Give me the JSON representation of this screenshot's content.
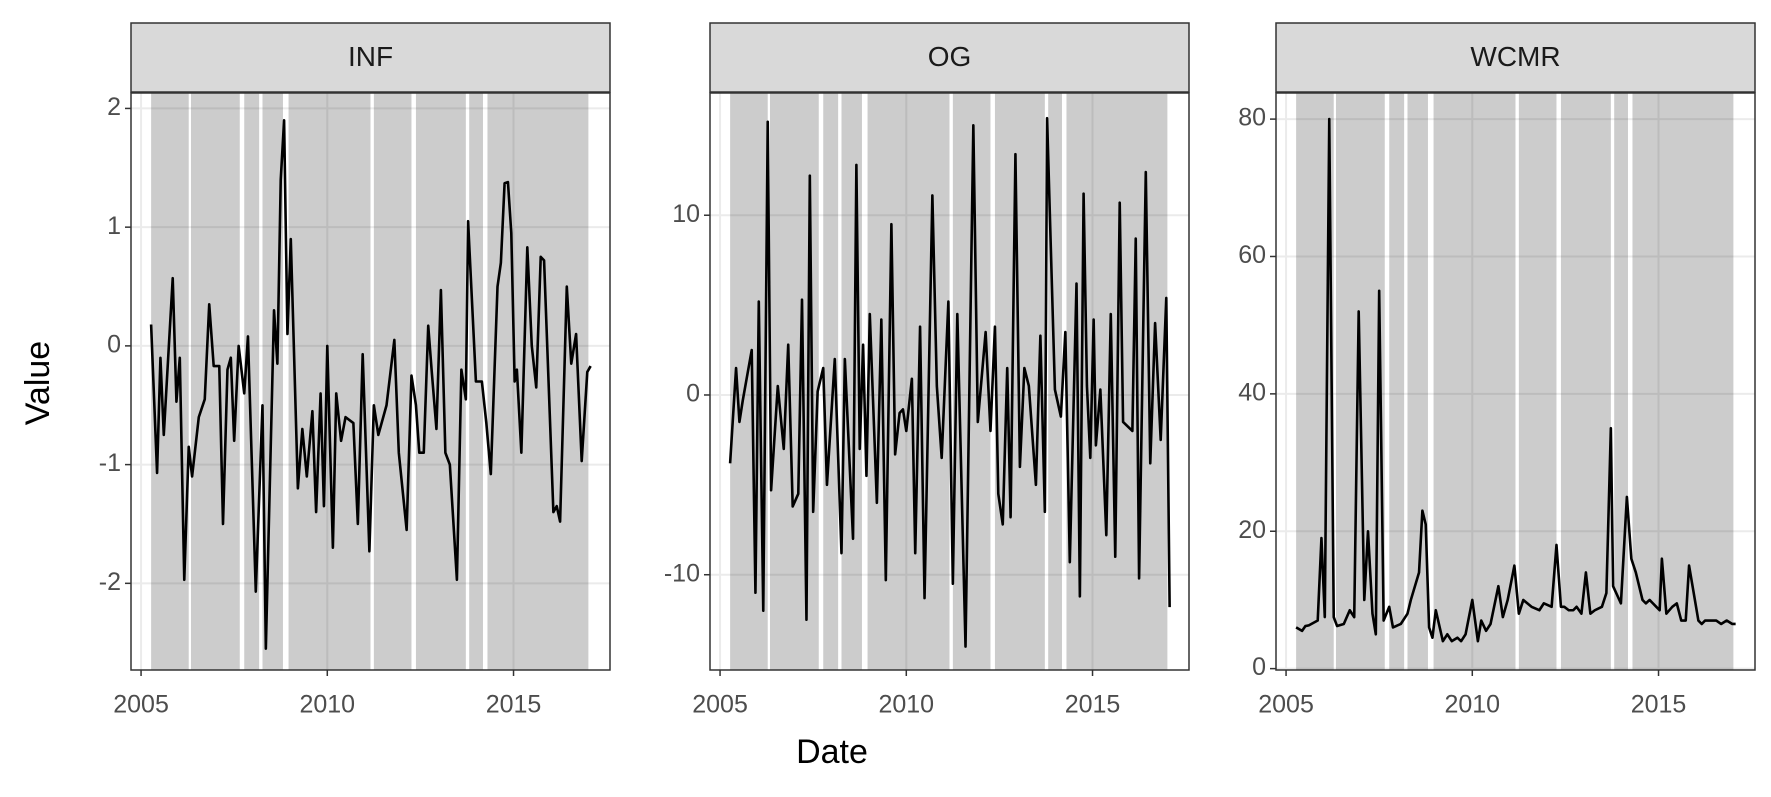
{
  "x_label": "Date",
  "y_label": "Value",
  "chart_data": [
    {
      "type": "line",
      "title": "INF",
      "color": "#000000",
      "grid": true,
      "xlim": [
        2004.73,
        2017.59
      ],
      "xticks": [
        2005,
        2010,
        2015
      ],
      "ylim": [
        -2.73,
        2.13
      ],
      "yticks": [
        -2,
        -1,
        0,
        1,
        2
      ],
      "shaded": [
        [
          2005.27,
          2006.28
        ],
        [
          2006.34,
          2007.65
        ],
        [
          2007.77,
          2008.17
        ],
        [
          2008.26,
          2008.81
        ],
        [
          2008.96,
          2011.16
        ],
        [
          2011.25,
          2012.26
        ],
        [
          2012.38,
          2013.72
        ],
        [
          2013.81,
          2014.18
        ],
        [
          2014.3,
          2017.01
        ]
      ],
      "x": [
        2005.27,
        2005.43,
        2005.52,
        2005.61,
        2005.85,
        2005.95,
        2006.04,
        2006.16,
        2006.28,
        2006.37,
        2006.55,
        2006.71,
        2006.83,
        2006.95,
        2007.1,
        2007.2,
        2007.32,
        2007.41,
        2007.5,
        2007.62,
        2007.77,
        2007.87,
        2008.08,
        2008.26,
        2008.35,
        2008.57,
        2008.66,
        2008.75,
        2008.84,
        2008.93,
        2009.02,
        2009.21,
        2009.33,
        2009.45,
        2009.6,
        2009.7,
        2009.82,
        2009.91,
        2010.0,
        2010.15,
        2010.24,
        2010.37,
        2010.49,
        2010.7,
        2010.82,
        2010.95,
        2011.13,
        2011.25,
        2011.37,
        2011.59,
        2011.8,
        2011.92,
        2012.13,
        2012.26,
        2012.38,
        2012.47,
        2012.59,
        2012.71,
        2012.8,
        2012.93,
        2013.05,
        2013.17,
        2013.29,
        2013.48,
        2013.6,
        2013.72,
        2013.78,
        2013.99,
        2014.15,
        2014.27,
        2014.39,
        2014.57,
        2014.66,
        2014.76,
        2014.85,
        2014.94,
        2015.03,
        2015.09,
        2015.21,
        2015.37,
        2015.49,
        2015.61,
        2015.73,
        2015.82,
        2016.07,
        2016.16,
        2016.25,
        2016.43,
        2016.55,
        2016.68,
        2016.83,
        2016.98,
        2017.07
      ],
      "values": [
        0.18,
        -1.07,
        -0.1,
        -0.75,
        0.57,
        -0.47,
        -0.1,
        -1.97,
        -0.85,
        -1.1,
        -0.6,
        -0.45,
        0.35,
        -0.17,
        -0.17,
        -1.5,
        -0.2,
        -0.1,
        -0.8,
        0.0,
        -0.4,
        0.08,
        -2.07,
        -0.5,
        -2.55,
        0.3,
        -0.15,
        1.4,
        1.9,
        0.1,
        0.9,
        -1.2,
        -0.7,
        -1.1,
        -0.55,
        -1.4,
        -0.4,
        -1.35,
        0.0,
        -1.7,
        -0.4,
        -0.8,
        -0.6,
        -0.65,
        -1.5,
        -0.07,
        -1.73,
        -0.5,
        -0.75,
        -0.5,
        0.05,
        -0.9,
        -1.55,
        -0.25,
        -0.5,
        -0.9,
        -0.9,
        0.17,
        -0.2,
        -0.7,
        0.47,
        -0.9,
        -1.0,
        -1.97,
        -0.2,
        -0.45,
        1.05,
        -0.3,
        -0.3,
        -0.65,
        -1.08,
        0.5,
        0.7,
        1.37,
        1.38,
        0.95,
        -0.3,
        -0.2,
        -0.9,
        0.83,
        0.0,
        -0.35,
        0.75,
        0.72,
        -1.4,
        -1.35,
        -1.48,
        0.5,
        -0.15,
        0.1,
        -0.97,
        -0.22,
        -0.17
      ]
    },
    {
      "type": "line",
      "title": "OG",
      "color": "#000000",
      "grid": true,
      "xlim": [
        2004.73,
        2017.59
      ],
      "xticks": [
        2005,
        2010,
        2015
      ],
      "ylim": [
        -15.3,
        16.8
      ],
      "yticks": [
        -10,
        0,
        10
      ],
      "shaded": [
        [
          2005.27,
          2006.28
        ],
        [
          2006.34,
          2007.65
        ],
        [
          2007.77,
          2008.17
        ],
        [
          2008.26,
          2008.81
        ],
        [
          2008.96,
          2011.16
        ],
        [
          2011.25,
          2012.26
        ],
        [
          2012.38,
          2013.72
        ],
        [
          2013.81,
          2014.18
        ],
        [
          2014.3,
          2017.01
        ]
      ],
      "x": [
        2005.27,
        2005.43,
        2005.52,
        2005.61,
        2005.85,
        2005.95,
        2006.04,
        2006.16,
        2006.28,
        2006.37,
        2006.55,
        2006.71,
        2006.83,
        2006.95,
        2007.1,
        2007.2,
        2007.32,
        2007.41,
        2007.5,
        2007.62,
        2007.77,
        2007.87,
        2008.08,
        2008.26,
        2008.35,
        2008.57,
        2008.66,
        2008.75,
        2008.84,
        2008.93,
        2009.02,
        2009.21,
        2009.33,
        2009.45,
        2009.6,
        2009.7,
        2009.82,
        2009.91,
        2010.0,
        2010.15,
        2010.24,
        2010.37,
        2010.49,
        2010.7,
        2010.82,
        2010.95,
        2011.13,
        2011.25,
        2011.37,
        2011.59,
        2011.8,
        2011.92,
        2012.13,
        2012.26,
        2012.38,
        2012.47,
        2012.59,
        2012.71,
        2012.8,
        2012.93,
        2013.05,
        2013.17,
        2013.29,
        2013.48,
        2013.6,
        2013.72,
        2013.78,
        2013.99,
        2014.15,
        2014.27,
        2014.39,
        2014.57,
        2014.66,
        2014.76,
        2014.85,
        2014.94,
        2015.03,
        2015.09,
        2015.21,
        2015.37,
        2015.49,
        2015.61,
        2015.73,
        2015.82,
        2016.07,
        2016.16,
        2016.25,
        2016.43,
        2016.55,
        2016.68,
        2016.83,
        2016.98,
        2017.07
      ],
      "values": [
        -3.8,
        1.5,
        -1.5,
        -0.3,
        2.5,
        -11,
        5.2,
        -12,
        15.2,
        -5.3,
        0.5,
        -3,
        2.8,
        -6.2,
        -5.5,
        5.3,
        -12.5,
        12.2,
        -6.5,
        0.2,
        1.5,
        -5,
        2,
        -8.8,
        2,
        -8,
        12.8,
        -3,
        2.8,
        -4.5,
        4.5,
        -6,
        4.2,
        -10.3,
        9.5,
        -3.3,
        -1,
        -0.8,
        -2,
        0.9,
        -8.8,
        3.8,
        -11.3,
        11.1,
        0.5,
        -3.5,
        5.2,
        -10.5,
        4.5,
        -14,
        15,
        -1.5,
        3.5,
        -2,
        3.8,
        -5.5,
        -7.2,
        1.5,
        -6.8,
        13.4,
        -4,
        1.5,
        0.5,
        -5,
        3.3,
        -6.5,
        15.4,
        0.3,
        -1.2,
        3.5,
        -9.3,
        6.2,
        -11.2,
        11.2,
        0.5,
        -3.5,
        4.2,
        -2.8,
        0.3,
        -7.8,
        4.5,
        -9,
        10.7,
        -1.5,
        -2,
        8.7,
        -10.2,
        12.4,
        -3.8,
        4,
        -2.5,
        5.4,
        -11.8
      ]
    },
    {
      "type": "line",
      "title": "WCMR",
      "color": "#000000",
      "grid": true,
      "xlim": [
        2004.73,
        2017.59
      ],
      "xticks": [
        2005,
        2010,
        2015
      ],
      "ylim": [
        -0.2,
        83.8
      ],
      "yticks": [
        0,
        20,
        40,
        60,
        80
      ],
      "shaded": [
        [
          2005.27,
          2006.28
        ],
        [
          2006.34,
          2007.65
        ],
        [
          2007.77,
          2008.17
        ],
        [
          2008.26,
          2008.81
        ],
        [
          2008.96,
          2011.16
        ],
        [
          2011.25,
          2012.26
        ],
        [
          2012.38,
          2013.72
        ],
        [
          2013.81,
          2014.18
        ],
        [
          2014.3,
          2017.01
        ]
      ],
      "x": [
        2005.27,
        2005.43,
        2005.52,
        2005.61,
        2005.85,
        2005.95,
        2006.04,
        2006.16,
        2006.28,
        2006.37,
        2006.55,
        2006.71,
        2006.83,
        2006.95,
        2007.1,
        2007.2,
        2007.32,
        2007.41,
        2007.5,
        2007.62,
        2007.77,
        2007.87,
        2008.08,
        2008.26,
        2008.35,
        2008.57,
        2008.66,
        2008.75,
        2008.84,
        2008.93,
        2009.02,
        2009.21,
        2009.33,
        2009.45,
        2009.6,
        2009.7,
        2009.82,
        2009.91,
        2010.0,
        2010.15,
        2010.24,
        2010.37,
        2010.49,
        2010.7,
        2010.82,
        2010.95,
        2011.13,
        2011.25,
        2011.37,
        2011.59,
        2011.8,
        2011.92,
        2012.13,
        2012.26,
        2012.38,
        2012.47,
        2012.59,
        2012.71,
        2012.8,
        2012.93,
        2013.05,
        2013.17,
        2013.29,
        2013.48,
        2013.6,
        2013.72,
        2013.78,
        2013.99,
        2014.15,
        2014.27,
        2014.39,
        2014.57,
        2014.66,
        2014.76,
        2014.85,
        2014.94,
        2015.03,
        2015.09,
        2015.21,
        2015.37,
        2015.49,
        2015.61,
        2015.73,
        2015.82,
        2016.07,
        2016.16,
        2016.25,
        2016.43,
        2016.55,
        2016.68,
        2016.83,
        2016.98,
        2017.07
      ],
      "values": [
        6,
        5.5,
        6.2,
        6.3,
        7,
        19,
        7.5,
        80,
        7.5,
        6.2,
        6.5,
        8.5,
        7.5,
        52,
        10,
        20,
        8,
        5,
        55,
        7,
        9,
        6,
        6.5,
        8,
        10,
        14,
        23,
        21,
        6,
        4.5,
        8.5,
        4,
        5,
        4,
        4.5,
        4,
        5,
        7.5,
        10,
        4,
        7,
        5.5,
        6.5,
        12,
        7.5,
        10,
        15,
        8,
        10,
        9,
        8.5,
        9.5,
        9,
        18,
        9,
        9,
        8.5,
        8.5,
        9,
        8,
        14,
        8,
        8.5,
        9,
        11,
        35,
        12,
        9.5,
        25,
        16,
        14,
        10,
        9.5,
        10,
        9.5,
        9,
        8.5,
        16,
        8,
        9,
        9.5,
        7,
        7,
        15,
        7,
        6.5,
        7,
        7,
        7,
        6.5,
        7,
        6.5,
        6.5
      ]
    }
  ]
}
